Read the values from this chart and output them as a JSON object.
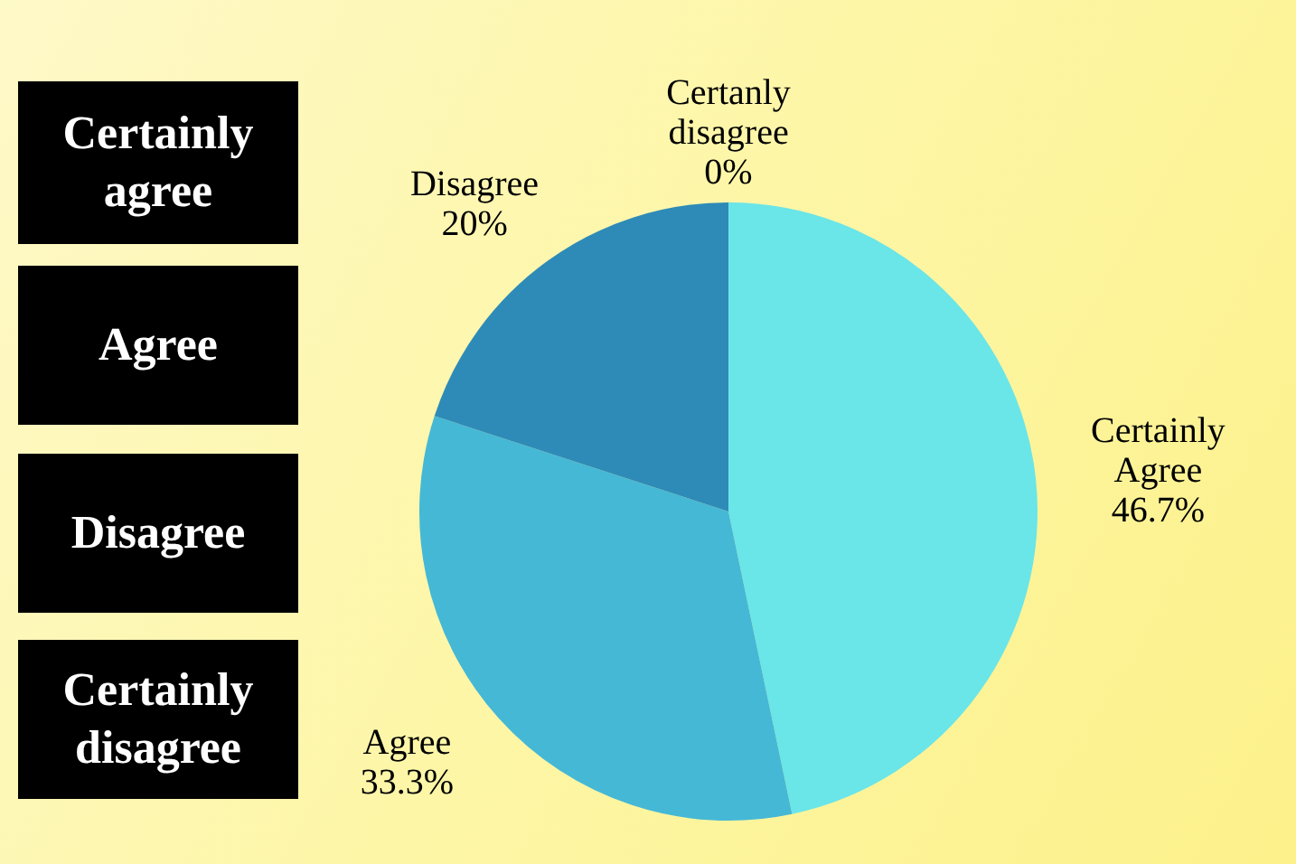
{
  "chart_data": {
    "type": "pie",
    "categories": [
      "Certainly Agree",
      "Agree",
      "Disagree",
      "Certanly disagree"
    ],
    "values": [
      46.7,
      33.3,
      20,
      0
    ],
    "value_labels": [
      "46.7%",
      "33.3%",
      "20%",
      "0%"
    ],
    "colors": [
      "#6ae5e8",
      "#45b8d6",
      "#2e8bb8",
      "#1f5f8a"
    ],
    "legend": false,
    "annotations": [
      "Certainly agree",
      "Agree",
      "Disagree",
      "Certainly disagree"
    ]
  }
}
